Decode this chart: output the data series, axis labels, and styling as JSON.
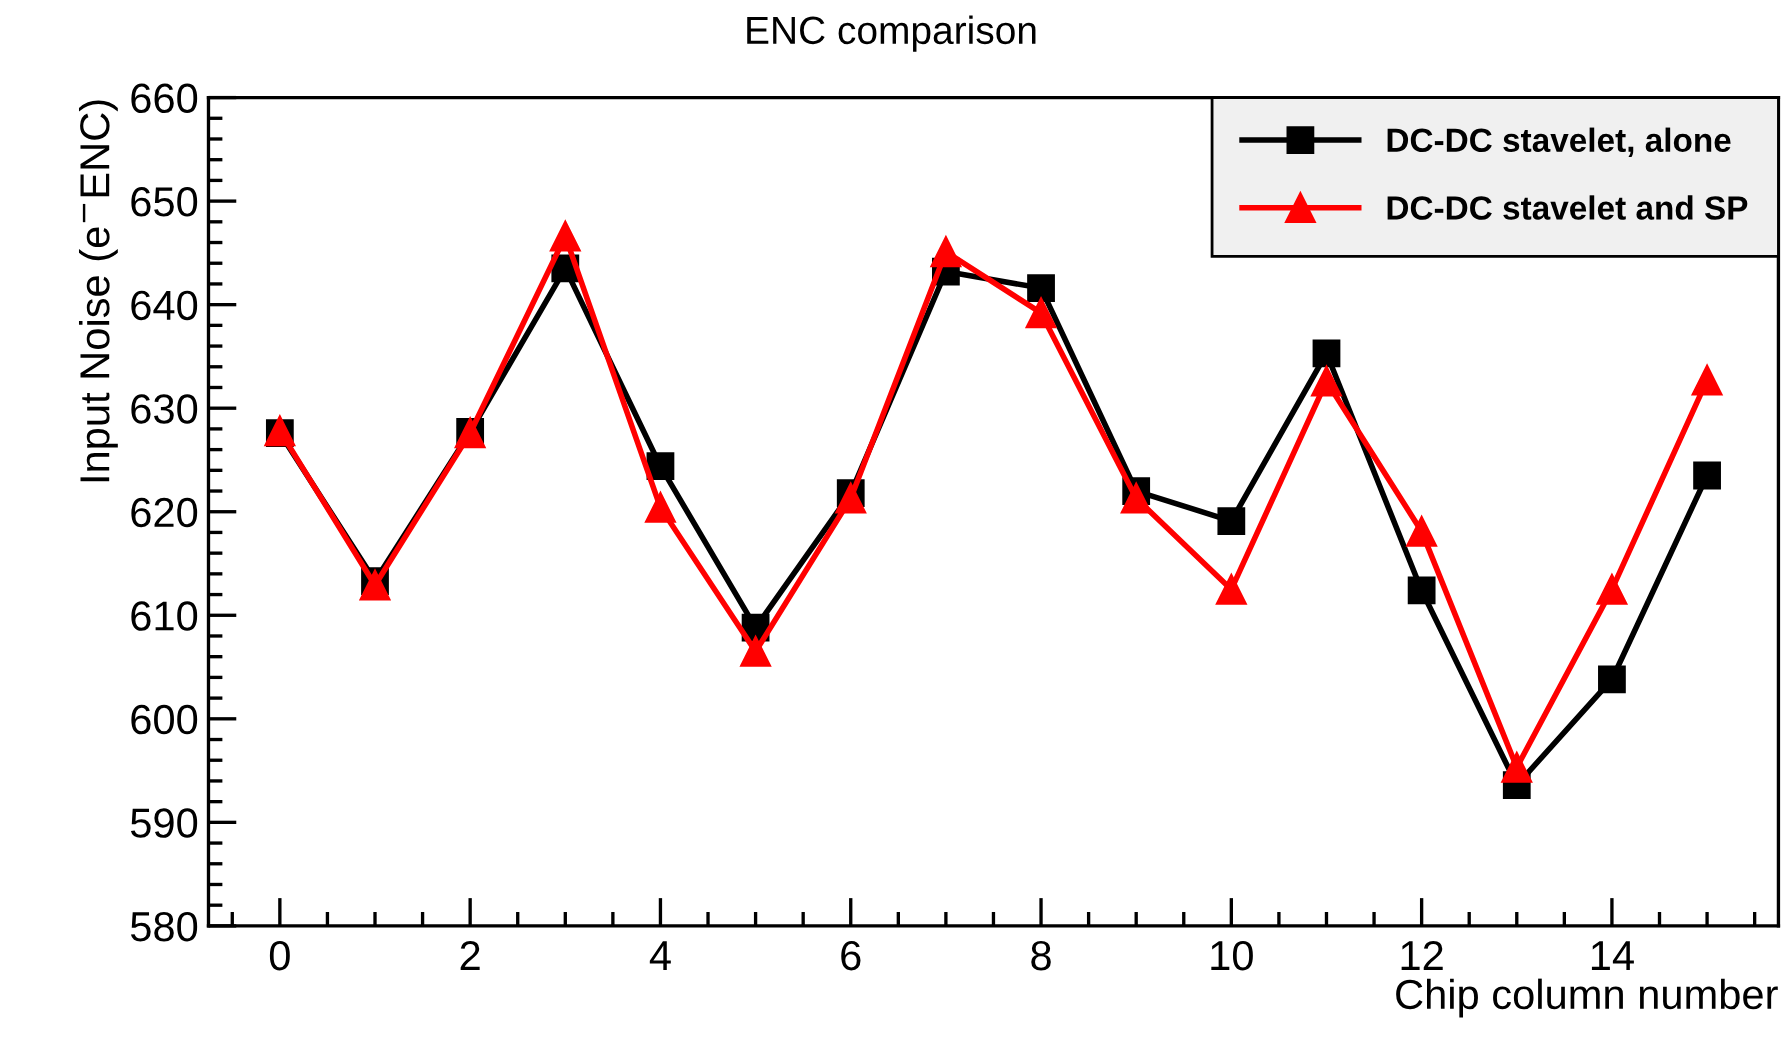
{
  "chart_data": {
    "type": "line",
    "title": "ENC comparison",
    "xlabel": "Chip column number",
    "ylabel": "Input Noise (e$^{−}$ENC)",
    "x": [
      0,
      1,
      2,
      3,
      4,
      5,
      6,
      7,
      8,
      9,
      10,
      11,
      12,
      13,
      14,
      15
    ],
    "series": [
      {
        "name": "DC-DC stavelet, alone",
        "color": "#000000",
        "marker": "square",
        "values": [
          627.6,
          613.3,
          627.7,
          643.5,
          624.4,
          608.8,
          621.8,
          643.2,
          641.6,
          622.0,
          619.1,
          635.3,
          612.4,
          593.6,
          603.8,
          623.5
        ]
      },
      {
        "name": "DC-DC stavelet and SP",
        "color": "#ff0000",
        "marker": "triangle",
        "values": [
          627.8,
          612.9,
          627.6,
          646.6,
          620.4,
          606.5,
          621.3,
          645.1,
          639.2,
          621.3,
          612.5,
          632.6,
          618.1,
          595.3,
          612.5,
          632.7
        ]
      }
    ],
    "xlim": [
      -0.75,
      15.75
    ],
    "xticks": [
      0,
      2,
      4,
      6,
      8,
      10,
      12,
      14
    ],
    "ylim": [
      580,
      660
    ],
    "yticks": [
      580,
      590,
      600,
      610,
      620,
      630,
      640,
      650,
      660
    ],
    "grid": false,
    "legend": "top right",
    "line_style": "solid"
  }
}
